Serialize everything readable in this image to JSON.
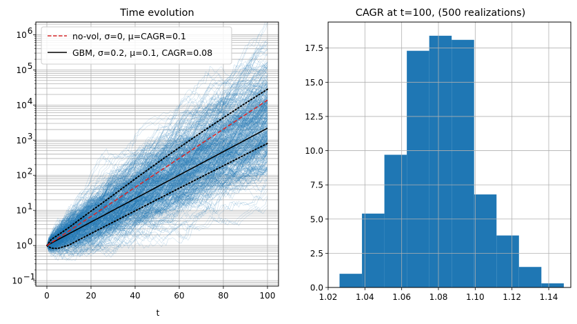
{
  "chart_data": [
    {
      "type": "line",
      "title": "Time evolution",
      "xlabel": "t",
      "ylabel": "",
      "yscale": "log",
      "xlim": [
        -5,
        105
      ],
      "ylim": [
        0.07,
        2300000
      ],
      "xticks": [
        0,
        20,
        40,
        60,
        80,
        100
      ],
      "xtick_labels": [
        "0",
        "20",
        "40",
        "60",
        "80",
        "100"
      ],
      "yticks": [
        0.1,
        1,
        10,
        100,
        1000,
        10000,
        100000,
        1000000
      ],
      "ytick_labels": [
        {
          "base": "10",
          "exp": "−1"
        },
        {
          "base": "10",
          "exp": "0"
        },
        {
          "base": "10",
          "exp": "1"
        },
        {
          "base": "10",
          "exp": "2"
        },
        {
          "base": "10",
          "exp": "3"
        },
        {
          "base": "10",
          "exp": "4"
        },
        {
          "base": "10",
          "exp": "5"
        },
        {
          "base": "10",
          "exp": "6"
        }
      ],
      "grid": true,
      "grid_minor": true,
      "legend_position": "top-left",
      "legend": [
        {
          "label": "no-vol, σ=0, μ=CAGR=0.1",
          "color": "#d62728",
          "style": "dashed"
        },
        {
          "label": "GBM, σ=0.2, μ=0.1, CAGR=0.08",
          "color": "#000000",
          "style": "solid"
        }
      ],
      "series": [
        {
          "name": "no-vol, σ=0, μ=CAGR=0.1",
          "x": [
            0,
            100
          ],
          "y": [
            1,
            13780
          ],
          "color": "#d62728",
          "style": "dashed"
        },
        {
          "name": "GBM, σ=0.2, μ=0.1, CAGR=0.08",
          "x": [
            0,
            100
          ],
          "y": [
            1,
            2190
          ],
          "color": "#000000",
          "style": "solid"
        },
        {
          "x": [
            0,
            2,
            5,
            10,
            20,
            30,
            40,
            50,
            60,
            70,
            80,
            90,
            100
          ],
          "y": [
            1,
            1.5,
            1.98,
            3.26,
            9.5,
            27,
            79,
            223,
            616,
            1660,
            4350,
            11200,
            28200
          ],
          "color": "#000000",
          "style": "dotted"
        },
        {
          "x": [
            0,
            2,
            5,
            10,
            20,
            30,
            40,
            50,
            60,
            70,
            80,
            90,
            100
          ],
          "y": [
            1,
            0.838,
            0.826,
            1.03,
            2.19,
            4.62,
            9.7,
            20.4,
            42.8,
            89,
            186,
            388,
            810
          ],
          "color": "#000000",
          "style": "dotted"
        }
      ],
      "realizations": {
        "count": 500,
        "t_end": 100,
        "color": "#1f77b4",
        "mu": 0.08,
        "sigma": 0.2
      }
    },
    {
      "type": "bar",
      "title": "CAGR at t=100, (500 realizations)",
      "xlabel": "",
      "ylabel": "",
      "xlim": [
        1.02,
        1.152
      ],
      "ylim": [
        0,
        19.4
      ],
      "xticks": [
        1.02,
        1.04,
        1.06,
        1.08,
        1.1,
        1.12,
        1.14
      ],
      "xtick_labels": [
        "1.02",
        "1.04",
        "1.06",
        "1.08",
        "1.10",
        "1.12",
        "1.14"
      ],
      "yticks": [
        0,
        2.5,
        5,
        7.5,
        10,
        12.5,
        15,
        17.5
      ],
      "ytick_labels": [
        "0.0",
        "2.5",
        "5.0",
        "7.5",
        "10.0",
        "12.5",
        "15.0",
        "17.5"
      ],
      "grid": true,
      "bar_color": "#1f77b4",
      "bin_edges": [
        1.0262,
        1.0384,
        1.0506,
        1.0628,
        1.075,
        1.0872,
        1.0994,
        1.1116,
        1.1238,
        1.136,
        1.1482
      ],
      "values": [
        1.0,
        5.4,
        9.7,
        17.3,
        18.4,
        18.1,
        6.8,
        3.8,
        1.5,
        0.3
      ]
    }
  ]
}
